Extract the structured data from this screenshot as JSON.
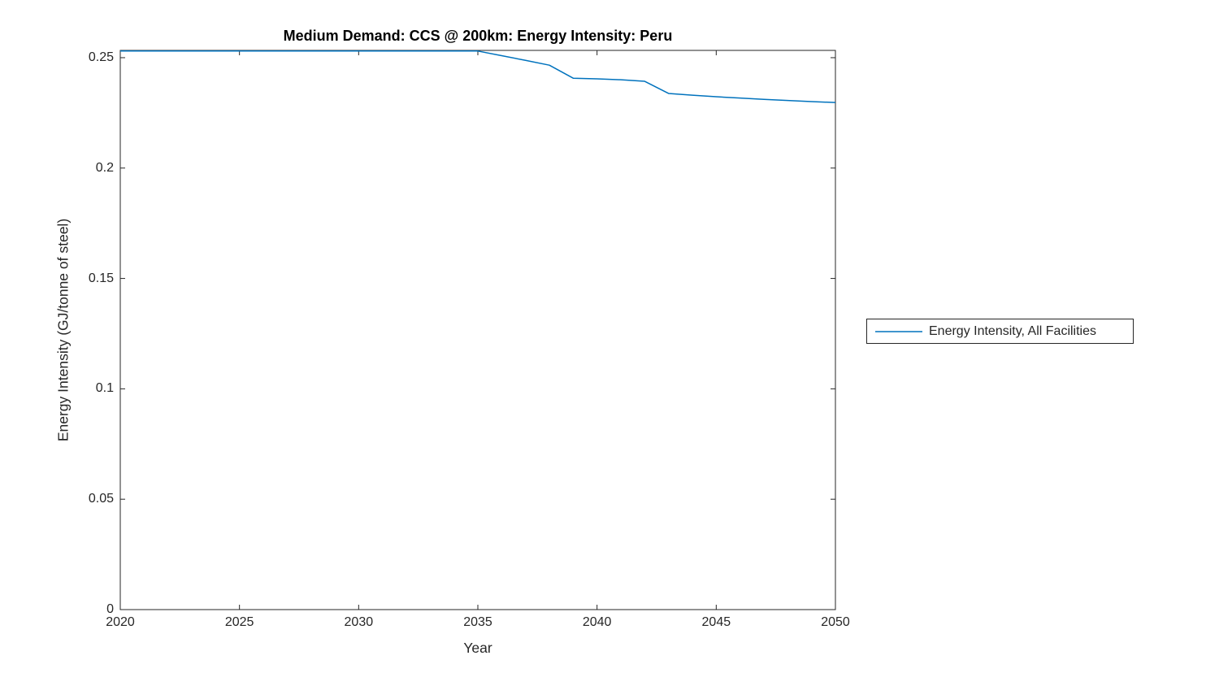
{
  "figure": {
    "background": "#ffffff"
  },
  "colors": {
    "axis": "#262626",
    "text": "#262626",
    "series_line": "#0072BD",
    "background": "#ffffff"
  },
  "chart_data": {
    "type": "line",
    "title": "Medium Demand: CCS @ 200km: Energy Intensity: Peru",
    "xlabel": "Year",
    "ylabel": "Energy Intensity (GJ/tonne of steel)",
    "xlim": [
      2020,
      2050
    ],
    "ylim": [
      0,
      0.2533
    ],
    "xticks": [
      2020,
      2025,
      2030,
      2035,
      2040,
      2045,
      2050
    ],
    "xtick_labels": [
      "2020",
      "2025",
      "2030",
      "2035",
      "2040",
      "2045",
      "2050"
    ],
    "yticks": [
      0,
      0.05,
      0.1,
      0.15,
      0.2,
      0.25
    ],
    "ytick_labels": [
      "0",
      "0.05",
      "0.1",
      "0.15",
      "0.2",
      "0.25"
    ],
    "grid": false,
    "box": true,
    "tick_dir": "in",
    "legend": {
      "position": "outside-right",
      "entries": [
        "Energy Intensity, All Facilities"
      ]
    },
    "series": [
      {
        "name": "Energy Intensity, All Facilities",
        "color": "#0072BD",
        "x": [
          2020,
          2021,
          2022,
          2023,
          2024,
          2025,
          2026,
          2027,
          2028,
          2029,
          2030,
          2031,
          2032,
          2033,
          2034,
          2035,
          2036,
          2037,
          2038,
          2039,
          2040,
          2041,
          2042,
          2043,
          2044,
          2045,
          2046,
          2047,
          2048,
          2049,
          2050
        ],
        "y": [
          0.253,
          0.253,
          0.253,
          0.253,
          0.253,
          0.253,
          0.253,
          0.253,
          0.253,
          0.253,
          0.253,
          0.253,
          0.253,
          0.253,
          0.253,
          0.253,
          0.2509,
          0.2488,
          0.2466,
          0.2407,
          0.2404,
          0.24,
          0.2393,
          0.2338,
          0.233,
          0.2323,
          0.2317,
          0.2311,
          0.2306,
          0.2301,
          0.2297
        ]
      }
    ]
  }
}
